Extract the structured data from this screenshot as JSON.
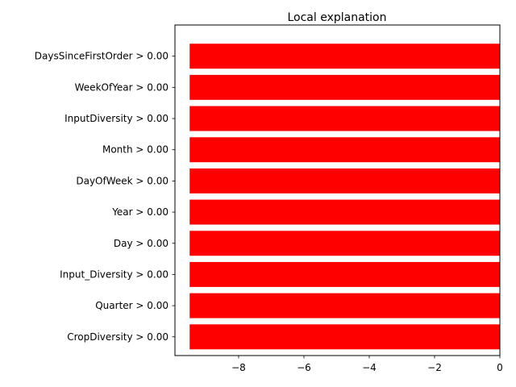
{
  "chart_data": {
    "type": "bar",
    "orientation": "horizontal",
    "title": "Local explanation",
    "xlabel": "",
    "ylabel": "",
    "categories": [
      "DaysSinceFirstOrder > 0.00",
      "WeekOfYear > 0.00",
      "InputDiversity > 0.00",
      "Month > 0.00",
      "DayOfWeek > 0.00",
      "Year > 0.00",
      "Day > 0.00",
      "Input_Diversity > 0.00",
      "Quarter > 0.00",
      "CropDiversity > 0.00"
    ],
    "values": [
      -9.5,
      -9.5,
      -9.5,
      -9.5,
      -9.5,
      -9.5,
      -9.5,
      -9.5,
      -9.5,
      -9.5
    ],
    "xlim": [
      -9.95,
      0
    ],
    "xticks": [
      -8,
      -6,
      -4,
      -2,
      0
    ],
    "bar_color": "#ff0000",
    "grid": false
  }
}
